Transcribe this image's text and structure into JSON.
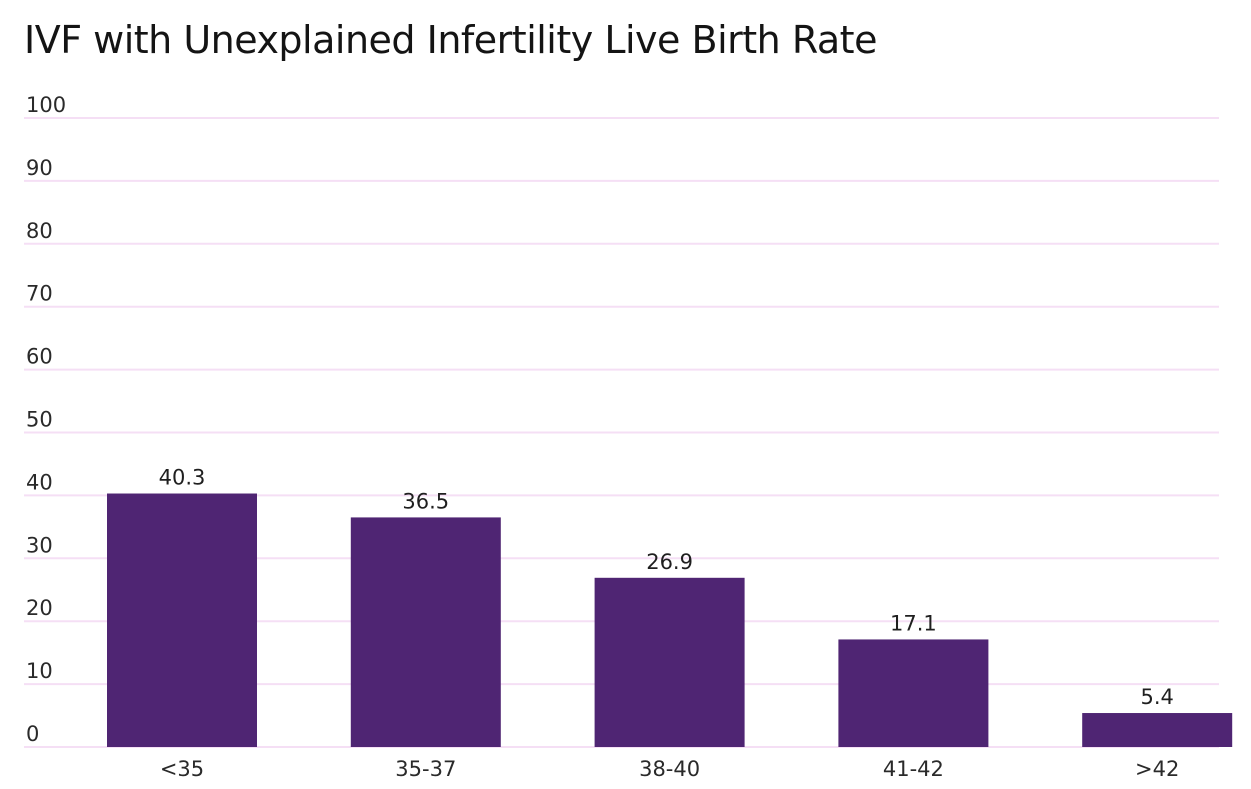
{
  "chart_data": {
    "type": "bar",
    "title": "IVF with Unexplained Infertility Live Birth Rate",
    "categories": [
      "<35",
      "35-37",
      "38-40",
      "41-42",
      ">42"
    ],
    "values": [
      40.3,
      36.5,
      26.9,
      17.1,
      5.4
    ],
    "data_labels": [
      "40.3",
      "36.5",
      "26.9",
      "17.1",
      "5.4"
    ],
    "yticks": [
      "0",
      "10",
      "20",
      "30",
      "40",
      "50",
      "60",
      "70",
      "80",
      "90",
      "100"
    ],
    "ylim": [
      0,
      100
    ],
    "xlabel": "",
    "ylabel": "",
    "grid": true,
    "bar_color": "#4f2573",
    "grid_color": "#f5dff5"
  }
}
